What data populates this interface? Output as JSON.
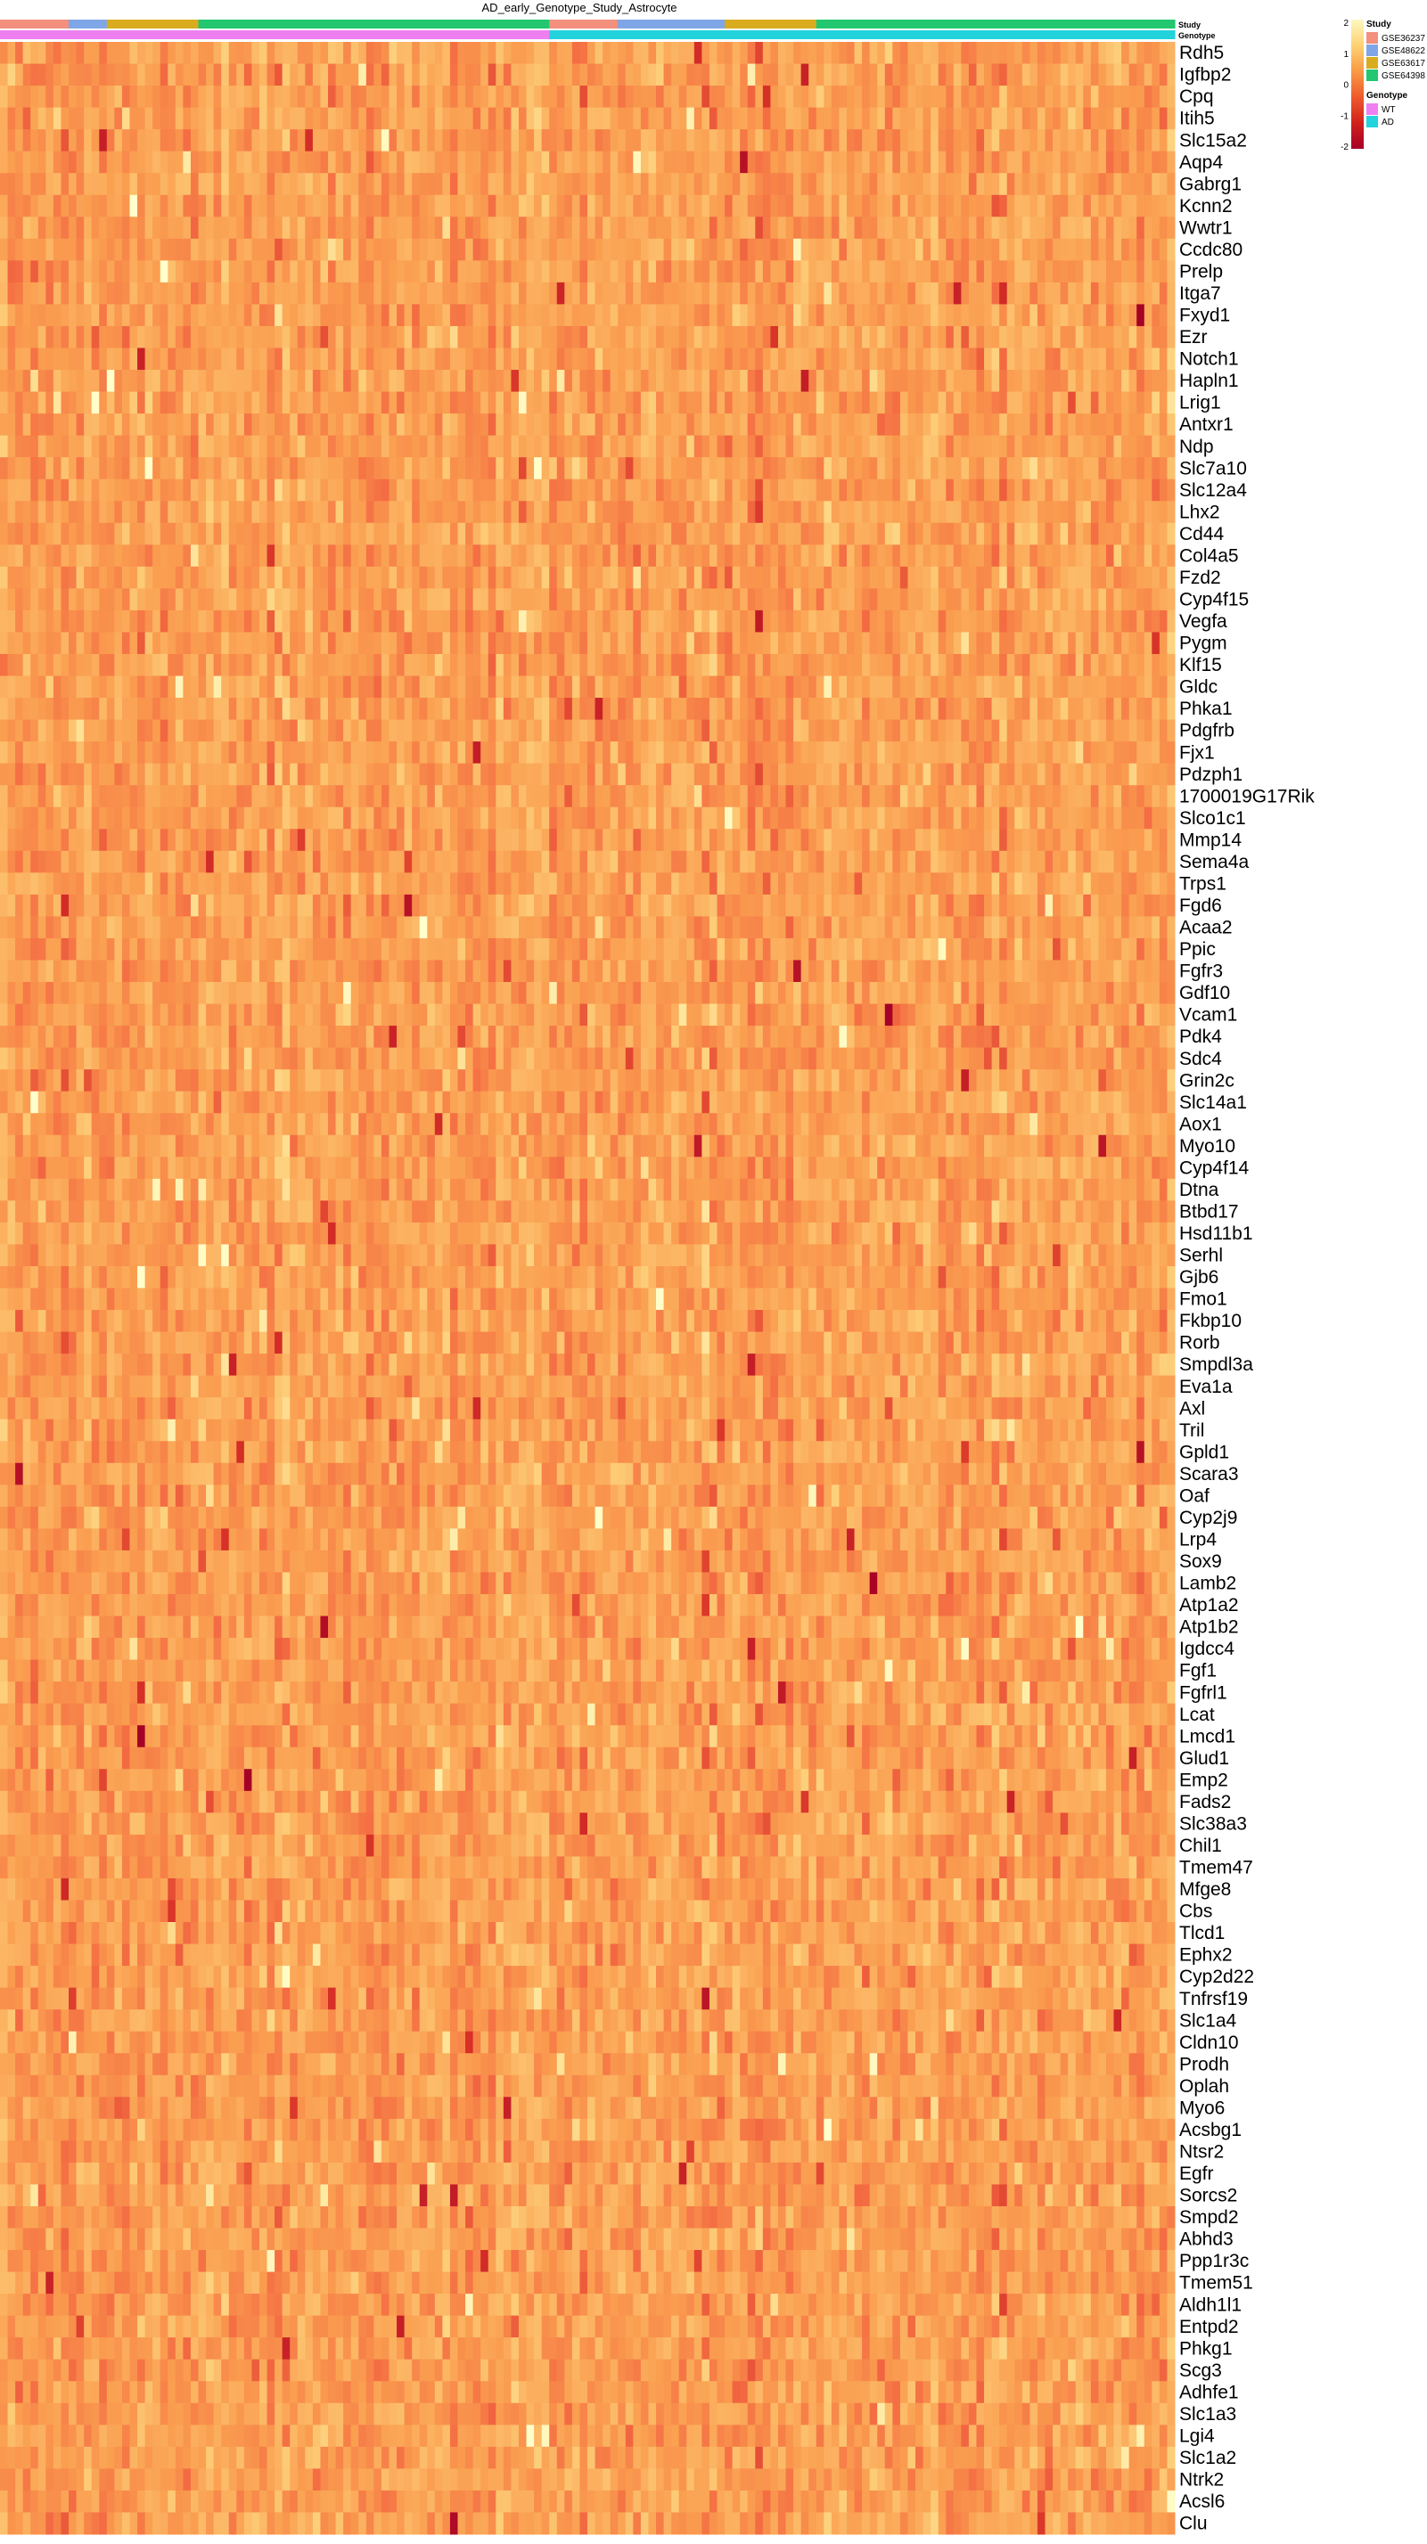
{
  "chart_data": {
    "type": "heatmap",
    "title": "AD_early_Genotype_Study_Astrocyte",
    "rows": [
      "Rdh5",
      "Igfbp2",
      "Cpq",
      "Itih5",
      "Slc15a2",
      "Aqp4",
      "Gabrg1",
      "Kcnn2",
      "Wwtr1",
      "Ccdc80",
      "Prelp",
      "Itga7",
      "Fxyd1",
      "Ezr",
      "Notch1",
      "Hapln1",
      "Lrig1",
      "Antxr1",
      "Ndp",
      "Slc7a10",
      "Slc12a4",
      "Lhx2",
      "Cd44",
      "Col4a5",
      "Fzd2",
      "Cyp4f15",
      "Vegfa",
      "Pygm",
      "Klf15",
      "Gldc",
      "Phka1",
      "Pdgfrb",
      "Fjx1",
      "Pdzph1",
      "1700019G17Rik",
      "Slco1c1",
      "Mmp14",
      "Sema4a",
      "Trps1",
      "Fgd6",
      "Acaa2",
      "Ppic",
      "Fgfr3",
      "Gdf10",
      "Vcam1",
      "Pdk4",
      "Sdc4",
      "Grin2c",
      "Slc14a1",
      "Aox1",
      "Myo10",
      "Cyp4f14",
      "Dtna",
      "Btbd17",
      "Hsd11b1",
      "Serhl",
      "Gjb6",
      "Fmo1",
      "Fkbp10",
      "Rorb",
      "Smpdl3a",
      "Eva1a",
      "Axl",
      "Tril",
      "Gpld1",
      "Scara3",
      "Oaf",
      "Cyp2j9",
      "Lrp4",
      "Sox9",
      "Lamb2",
      "Atp1a2",
      "Atp1b2",
      "Igdcc4",
      "Fgf1",
      "Fgfrl1",
      "Lcat",
      "Lmcd1",
      "Glud1",
      "Emp2",
      "Fads2",
      "Slc38a3",
      "Chil1",
      "Tmem47",
      "Mfge8",
      "Cbs",
      "Tlcd1",
      "Ephx2",
      "Cyp2d22",
      "Tnfrsf19",
      "Slc1a4",
      "Cldn10",
      "Prodh",
      "Oplah",
      "Myo6",
      "Acsbg1",
      "Ntsr2",
      "Egfr",
      "Sorcs2",
      "Smpd2",
      "Abhd3",
      "Ppp1r3c",
      "Tmem51",
      "Aldh1l1",
      "Entpd2",
      "Phkg1",
      "Scg3",
      "Adhfe1",
      "Slc1a3",
      "Lgi4",
      "Slc1a2",
      "Ntrk2",
      "Acsl6",
      "Clu"
    ],
    "column_count": 154,
    "annotation_rows": [
      {
        "label": "Study",
        "blocks": [
          {
            "value": "GSE36237",
            "count": 9
          },
          {
            "value": "GSE48622",
            "count": 5
          },
          {
            "value": "GSE63617",
            "count": 12
          },
          {
            "value": "GSE64398",
            "count": 46
          },
          {
            "value": "GSE36237",
            "count": 9
          },
          {
            "value": "GSE48622",
            "count": 14
          },
          {
            "value": "GSE63617",
            "count": 12
          },
          {
            "value": "GSE64398",
            "count": 47
          }
        ]
      },
      {
        "label": "Genotype",
        "blocks": [
          {
            "value": "WT",
            "count": 72
          },
          {
            "value": "AD",
            "count": 82
          }
        ]
      }
    ],
    "legend": {
      "colorbar": {
        "range": [
          -2,
          2
        ],
        "ticks": [
          "2",
          "1",
          "0",
          "-1",
          "-2"
        ],
        "colors": [
          "#fdf8c2",
          "#fdd273",
          "#f99a44",
          "#ef5a2d",
          "#d1211c",
          "#a50026"
        ]
      },
      "groups": [
        {
          "title": "Study",
          "items": [
            {
              "label": "GSE36237",
              "color": "#f28f7d"
            },
            {
              "label": "GSE48622",
              "color": "#7fa6e6"
            },
            {
              "label": "GSE63617",
              "color": "#d9ac1f"
            },
            {
              "label": "GSE64398",
              "color": "#22c770"
            }
          ]
        },
        {
          "title": "Genotype",
          "items": [
            {
              "label": "WT",
              "color": "#ef7ff0"
            },
            {
              "label": "AD",
              "color": "#22d3dc"
            }
          ]
        }
      ],
      "placement": "top-right"
    },
    "value_note_seed": 20240611,
    "hot_columns": [
      130,
      131,
      36,
      37,
      92,
      93,
      99
    ]
  }
}
